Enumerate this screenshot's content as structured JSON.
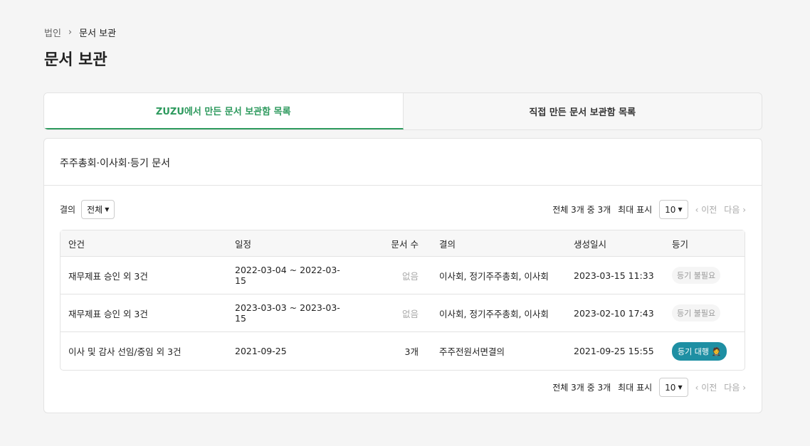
{
  "breadcrumb": {
    "parent": "법인",
    "current": "문서 보관"
  },
  "title": "문서 보관",
  "tabs": [
    {
      "label": "ZUZU에서 만든 문서 보관함 목록"
    },
    {
      "label": "직접 만든 문서 보관함 목록"
    }
  ],
  "section_title": "주주총회·이사회·등기 문서",
  "filter": {
    "label": "결의",
    "value": "전체"
  },
  "pagination": {
    "summary": "전체 3개 중 3개",
    "max_label": "최대 표시",
    "max_value": "10",
    "prev": "‹ 이전",
    "next": "다음 ›"
  },
  "table": {
    "headers": [
      "안건",
      "일정",
      "문서 수",
      "결의",
      "생성일시",
      "등기"
    ],
    "rows": [
      {
        "agenda": "재무제표 승인 외 3건",
        "schedule": "2022-03-04 ~ 2022-03-15",
        "docs": "없음",
        "resolution": "이사회, 정기주주총회, 이사회",
        "created": "2023-03-15 11:33",
        "reg": "등기 불필요",
        "reg_active": false
      },
      {
        "agenda": "재무제표 승인 외 3건",
        "schedule": "2023-03-03 ~ 2023-03-15",
        "docs": "없음",
        "resolution": "이사회, 정기주주총회, 이사회",
        "created": "2023-02-10 17:43",
        "reg": "등기 불필요",
        "reg_active": false
      },
      {
        "agenda": "이사 및 감사 선임/중임 외 3건",
        "schedule": "2021-09-25",
        "docs": "3개",
        "resolution": "주주전원서면결의",
        "created": "2021-09-25 15:55",
        "reg": "등기 대행 🤵",
        "reg_active": true
      }
    ]
  },
  "colors": {
    "accent": "#2e9a5e",
    "badge": "#1e8fa3"
  }
}
